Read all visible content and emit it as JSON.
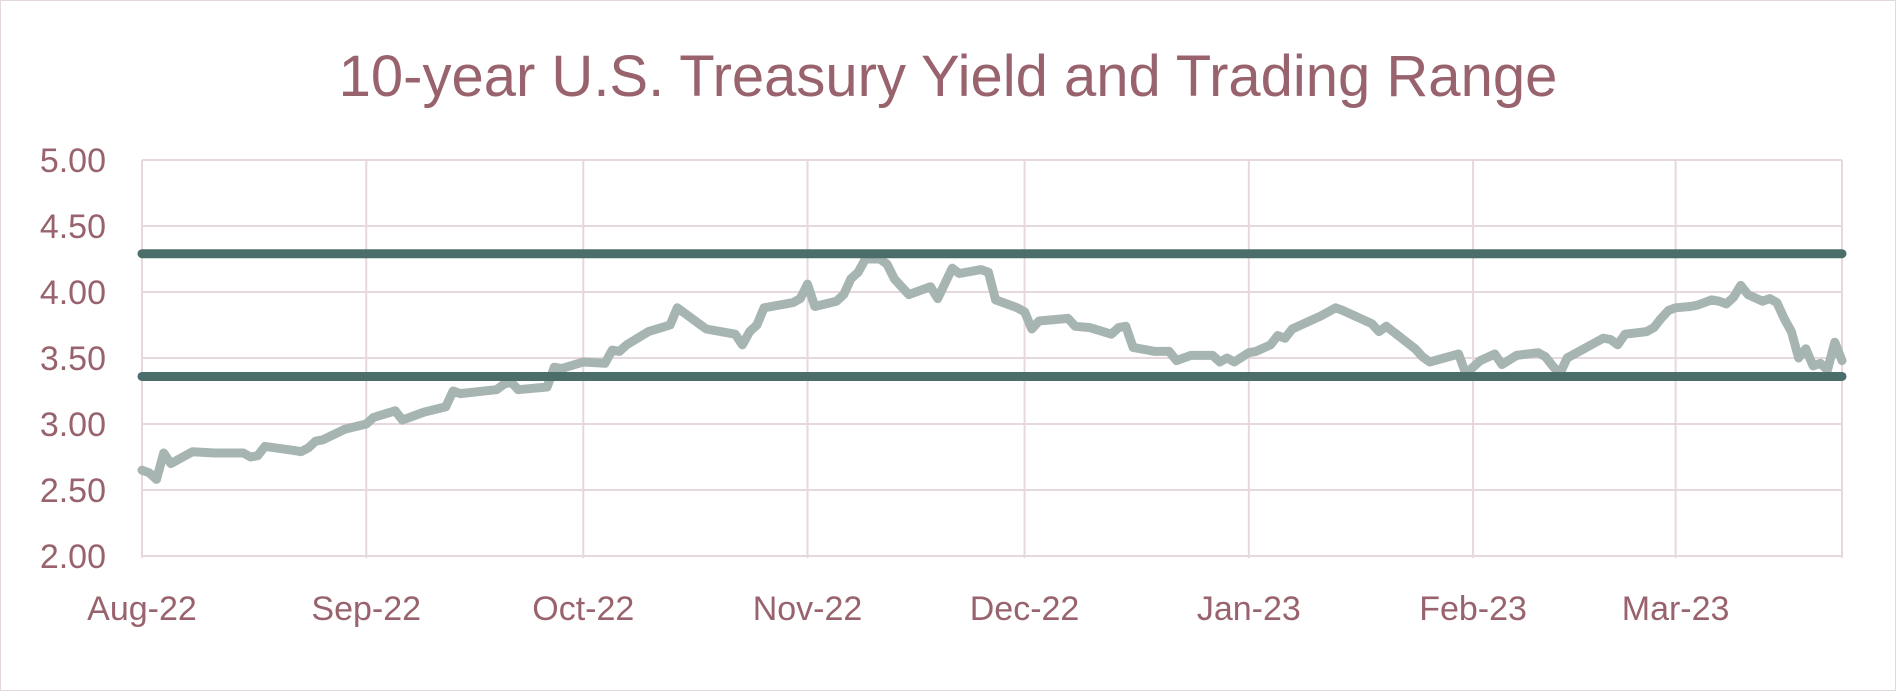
{
  "chart_data": {
    "type": "line",
    "title": "10-year U.S. Treasury Yield and Trading Range",
    "xlabel": "",
    "ylabel": "",
    "x_tick_labels": [
      "Aug-22",
      "Sep-22",
      "Oct-22",
      "Nov-22",
      "Dec-22",
      "Jan-23",
      "Feb-23",
      "Mar-23"
    ],
    "x_tick_dates": [
      "2022-08-01",
      "2022-09-01",
      "2022-10-01",
      "2022-11-01",
      "2022-12-01",
      "2023-01-01",
      "2023-02-01",
      "2023-03-01"
    ],
    "xlim": [
      "2022-08-01",
      "2023-03-24"
    ],
    "y_tick_labels": [
      "2.00",
      "2.50",
      "3.00",
      "3.50",
      "4.00",
      "4.50",
      "5.00"
    ],
    "y_ticks": [
      2.0,
      2.5,
      3.0,
      3.5,
      4.0,
      4.5,
      5.0
    ],
    "ylim": [
      2.0,
      5.0
    ],
    "grid": true,
    "legend": "none",
    "colors": {
      "series": "#a7b5b2",
      "range_lines": "#4c6e6b",
      "text": "#99636d",
      "grid": "#e6d8dc"
    },
    "series": [
      {
        "values": [
          [
            "2022-08-01",
            2.65
          ],
          [
            "2022-08-02",
            2.63
          ],
          [
            "2022-08-03",
            2.58
          ],
          [
            "2022-08-04",
            2.78
          ],
          [
            "2022-08-05",
            2.7
          ],
          [
            "2022-08-08",
            2.79
          ],
          [
            "2022-08-11",
            2.78
          ],
          [
            "2022-08-15",
            2.78
          ],
          [
            "2022-08-16",
            2.75
          ],
          [
            "2022-08-17",
            2.76
          ],
          [
            "2022-08-18",
            2.83
          ],
          [
            "2022-08-22",
            2.8
          ],
          [
            "2022-08-23",
            2.79
          ],
          [
            "2022-08-24",
            2.82
          ],
          [
            "2022-08-25",
            2.87
          ],
          [
            "2022-08-26",
            2.88
          ],
          [
            "2022-08-29",
            2.96
          ],
          [
            "2022-09-01",
            3.0
          ],
          [
            "2022-09-02",
            3.05
          ],
          [
            "2022-09-05",
            3.1
          ],
          [
            "2022-09-06",
            3.03
          ],
          [
            "2022-09-07",
            3.05
          ],
          [
            "2022-09-09",
            3.09
          ],
          [
            "2022-09-12",
            3.13
          ],
          [
            "2022-09-13",
            3.25
          ],
          [
            "2022-09-14",
            3.23
          ],
          [
            "2022-09-19",
            3.26
          ],
          [
            "2022-09-20",
            3.3
          ],
          [
            "2022-09-21",
            3.32
          ],
          [
            "2022-09-22",
            3.26
          ],
          [
            "2022-09-26",
            3.28
          ],
          [
            "2022-09-27",
            3.43
          ],
          [
            "2022-09-28",
            3.42
          ],
          [
            "2022-10-01",
            3.47
          ],
          [
            "2022-10-04",
            3.46
          ],
          [
            "2022-10-05",
            3.56
          ],
          [
            "2022-10-06",
            3.55
          ],
          [
            "2022-10-07",
            3.6
          ],
          [
            "2022-10-10",
            3.7
          ],
          [
            "2022-10-13",
            3.75
          ],
          [
            "2022-10-14",
            3.88
          ],
          [
            "2022-10-15",
            3.84
          ],
          [
            "2022-10-17",
            3.76
          ],
          [
            "2022-10-18",
            3.72
          ],
          [
            "2022-10-22",
            3.68
          ],
          [
            "2022-10-23",
            3.6
          ],
          [
            "2022-10-24",
            3.7
          ],
          [
            "2022-10-25",
            3.75
          ],
          [
            "2022-10-26",
            3.88
          ],
          [
            "2022-10-30",
            3.92
          ],
          [
            "2022-10-31",
            3.95
          ],
          [
            "2022-11-01",
            4.06
          ],
          [
            "2022-11-02",
            3.89
          ],
          [
            "2022-11-05",
            3.93
          ],
          [
            "2022-11-06",
            3.98
          ],
          [
            "2022-11-07",
            4.1
          ],
          [
            "2022-11-08",
            4.15
          ],
          [
            "2022-11-09",
            4.25
          ],
          [
            "2022-11-11",
            4.25
          ],
          [
            "2022-11-12",
            4.21
          ],
          [
            "2022-11-13",
            4.1
          ],
          [
            "2022-11-15",
            3.98
          ],
          [
            "2022-11-18",
            4.04
          ],
          [
            "2022-11-19",
            3.95
          ],
          [
            "2022-11-21",
            4.18
          ],
          [
            "2022-11-22",
            4.14
          ],
          [
            "2022-11-25",
            4.17
          ],
          [
            "2022-11-26",
            4.15
          ],
          [
            "2022-11-27",
            3.94
          ],
          [
            "2022-11-30",
            3.88
          ],
          [
            "2022-12-01",
            3.85
          ],
          [
            "2022-12-02",
            3.72
          ],
          [
            "2022-12-03",
            3.78
          ],
          [
            "2022-12-07",
            3.8
          ],
          [
            "2022-12-08",
            3.74
          ],
          [
            "2022-12-10",
            3.73
          ],
          [
            "2022-12-13",
            3.68
          ],
          [
            "2022-12-14",
            3.73
          ],
          [
            "2022-12-15",
            3.74
          ],
          [
            "2022-12-16",
            3.58
          ],
          [
            "2022-12-19",
            3.55
          ],
          [
            "2022-12-21",
            3.55
          ],
          [
            "2022-12-22",
            3.48
          ],
          [
            "2022-12-24",
            3.52
          ],
          [
            "2022-12-27",
            3.52
          ],
          [
            "2022-12-28",
            3.47
          ],
          [
            "2022-12-29",
            3.5
          ],
          [
            "2022-12-30",
            3.47
          ],
          [
            "2023-01-01",
            3.54
          ],
          [
            "2023-01-02",
            3.55
          ],
          [
            "2023-01-04",
            3.6
          ],
          [
            "2023-01-05",
            3.67
          ],
          [
            "2023-01-06",
            3.65
          ],
          [
            "2023-01-07",
            3.72
          ],
          [
            "2023-01-11",
            3.82
          ],
          [
            "2023-01-12",
            3.85
          ],
          [
            "2023-01-13",
            3.88
          ],
          [
            "2023-01-14",
            3.86
          ],
          [
            "2023-01-18",
            3.76
          ],
          [
            "2023-01-19",
            3.7
          ],
          [
            "2023-01-20",
            3.74
          ],
          [
            "2023-01-24",
            3.57
          ],
          [
            "2023-01-25",
            3.51
          ],
          [
            "2023-01-26",
            3.47
          ],
          [
            "2023-01-30",
            3.53
          ],
          [
            "2023-01-31",
            3.38
          ],
          [
            "2023-02-02",
            3.48
          ],
          [
            "2023-02-04",
            3.53
          ],
          [
            "2023-02-05",
            3.45
          ],
          [
            "2023-02-07",
            3.52
          ],
          [
            "2023-02-10",
            3.54
          ],
          [
            "2023-02-11",
            3.51
          ],
          [
            "2023-02-12",
            3.44
          ],
          [
            "2023-02-13",
            3.38
          ],
          [
            "2023-02-14",
            3.5
          ],
          [
            "2023-02-18",
            3.62
          ],
          [
            "2023-02-19",
            3.65
          ],
          [
            "2023-02-20",
            3.64
          ],
          [
            "2023-02-21",
            3.6
          ],
          [
            "2023-02-22",
            3.68
          ],
          [
            "2023-02-25",
            3.7
          ],
          [
            "2023-02-26",
            3.73
          ],
          [
            "2023-02-27",
            3.8
          ],
          [
            "2023-02-28",
            3.86
          ],
          [
            "2023-03-01",
            3.88
          ],
          [
            "2023-03-03",
            3.89
          ],
          [
            "2023-03-04",
            3.9
          ],
          [
            "2023-03-06",
            3.94
          ],
          [
            "2023-03-07",
            3.93
          ],
          [
            "2023-03-08",
            3.91
          ],
          [
            "2023-03-09",
            3.96
          ],
          [
            "2023-03-10",
            4.05
          ],
          [
            "2023-03-11",
            3.98
          ],
          [
            "2023-03-13",
            3.93
          ],
          [
            "2023-03-14",
            3.95
          ],
          [
            "2023-03-15",
            3.92
          ],
          [
            "2023-03-16",
            3.8
          ],
          [
            "2023-03-17",
            3.7
          ],
          [
            "2023-03-18",
            3.5
          ],
          [
            "2023-03-19",
            3.57
          ],
          [
            "2023-03-20",
            3.44
          ],
          [
            "2023-03-21",
            3.46
          ],
          [
            "2023-03-22",
            3.41
          ],
          [
            "2023-03-23",
            3.62
          ],
          [
            "2023-03-24",
            3.48
          ]
        ]
      }
    ],
    "trading_range": [
      3.36,
      4.29
    ]
  }
}
